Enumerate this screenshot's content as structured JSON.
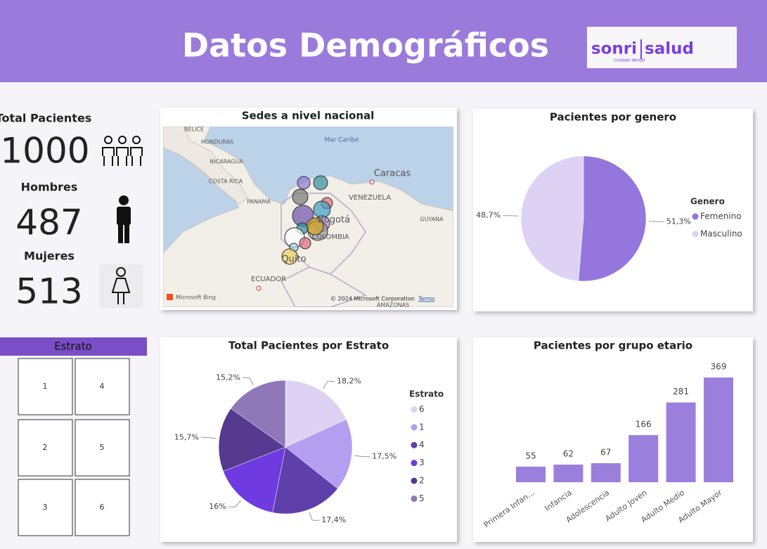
{
  "header": {
    "title": "Datos Demográficos",
    "logo_left": "sonri",
    "logo_right": "salud",
    "logo_sub": "cuidado dental"
  },
  "kpis": [
    {
      "label": "Total Pacientes",
      "value": 1000
    },
    {
      "label": "Hombres",
      "value": 487
    },
    {
      "label": "Mujeres",
      "value": 513
    }
  ],
  "map": {
    "title": "Sedes a nivel nacional",
    "labels": [
      "BELICE",
      "HONDURAS",
      "Mar Caribe",
      "NICARAGUA",
      "COSTA RICA",
      "PANAMÁ",
      "Caracas",
      "VENEZUELA",
      "GUYANA",
      "Bogotá",
      "COLOMBIA",
      "Quito",
      "ECUADOR",
      "AMAZONAS"
    ],
    "brand": "Microsoft Bing",
    "copyright": "© 2024 Microsoft Corporation",
    "terms": "Terms"
  },
  "slicer": {
    "title": "Estrato",
    "items": [
      "1",
      "4",
      "2",
      "5",
      "3",
      "6"
    ]
  },
  "chart_data": [
    {
      "type": "pie",
      "title": "Pacientes por genero",
      "legend_title": "Genero",
      "categories": [
        "Femenino",
        "Masculino"
      ],
      "values": [
        51.3,
        48.7
      ],
      "value_labels": [
        "51,3%",
        "48,7%"
      ],
      "colors": [
        "#9476dc",
        "#ddd2f4"
      ]
    },
    {
      "type": "pie",
      "title": "Total Pacientes por Estrato",
      "legend_title": "Estrato",
      "categories": [
        "6",
        "1",
        "4",
        "3",
        "2",
        "5"
      ],
      "values": [
        18.2,
        17.5,
        17.4,
        16,
        15.7,
        15.2
      ],
      "value_labels": [
        "18,2%",
        "17,5%",
        "17,4%",
        "16%",
        "15,7%",
        "15,2%"
      ],
      "colors": [
        "#ddd2f4",
        "#b39ef0",
        "#5f40ab",
        "#6f3ae0",
        "#553a8f",
        "#8e78b8"
      ]
    },
    {
      "type": "bar",
      "title": "Pacientes por grupo etario",
      "categories": [
        "Primera Infan...",
        "Infancia",
        "Adolescencia",
        "Adulto Joven",
        "Adulto Medio",
        "Adulto Mayor"
      ],
      "values": [
        55,
        62,
        67,
        166,
        281,
        369
      ],
      "color": "#9b7fdc"
    }
  ]
}
